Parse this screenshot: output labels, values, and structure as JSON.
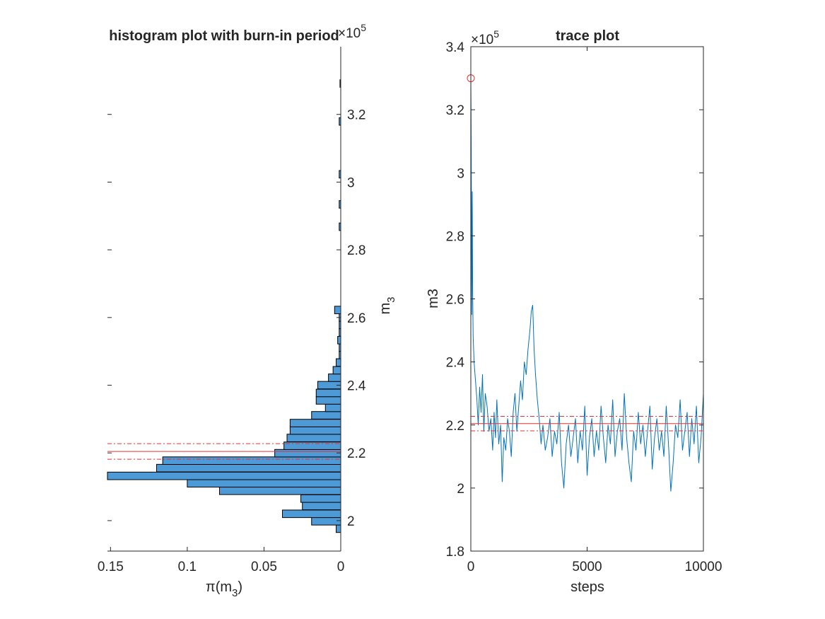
{
  "chart_data": [
    {
      "type": "bar",
      "orientation": "horizontal",
      "title": "histogram plot with burn-in period",
      "xlabel": "π(m",
      "xlabel_sub": "3",
      "xlabel_close": ")",
      "ylabel": "m",
      "ylabel_sub": "3",
      "exponent_label": "×10",
      "exponent_power": "5",
      "xlim": [
        0.152,
        0
      ],
      "xticks": [
        0.15,
        0.1,
        0.05,
        0
      ],
      "xtick_labels": [
        "0.15",
        "0.1",
        "0.05",
        "0"
      ],
      "ylim": [
        1.91,
        3.4
      ],
      "yticks": [
        2.0,
        2.2,
        2.4,
        2.6,
        2.8,
        3.0,
        3.2
      ],
      "ytick_labels": [
        "2",
        "2.2",
        "2.4",
        "2.6",
        "2.8",
        "3",
        "3.2"
      ],
      "y_axis_location": "right",
      "bin_width": 0.0223,
      "bin_starts": [
        1.965,
        1.987,
        2.009,
        2.032,
        2.054,
        2.077,
        2.099,
        2.121,
        2.144,
        2.166,
        2.188,
        2.21,
        2.233,
        2.255,
        2.277,
        2.3,
        2.322,
        2.344,
        2.366,
        2.389,
        2.411,
        2.433,
        2.456,
        2.478,
        2.5,
        2.522,
        2.545,
        2.567,
        2.589,
        2.611,
        2.857,
        2.923,
        3.012,
        3.168,
        3.28
      ],
      "values": [
        0.003,
        0.019,
        0.038,
        0.025,
        0.026,
        0.079,
        0.1,
        0.152,
        0.12,
        0.116,
        0.043,
        0.037,
        0.035,
        0.033,
        0.033,
        0.019,
        0.01,
        0.016,
        0.016,
        0.015,
        0.008,
        0.005,
        0.003,
        0.001,
        0.001,
        0.002,
        0.001,
        0.001,
        0.001,
        0.004,
        0.001,
        0.001,
        0.001,
        0.001,
        0.0005
      ],
      "bar_color": "#4d9ad6",
      "edge_color": "#000000",
      "reference_lines": [
        {
          "value": 2.2045,
          "style": "solid",
          "color": "#e83030"
        },
        {
          "value": 2.2275,
          "style": "dashdot",
          "color": "#e83030"
        },
        {
          "value": 2.1815,
          "style": "dashdot",
          "color": "#e83030"
        }
      ]
    },
    {
      "type": "line",
      "title": "trace plot",
      "xlabel": "steps",
      "ylabel": "m3",
      "exponent_label": "×10",
      "exponent_power": "5",
      "xlim": [
        0,
        10000
      ],
      "xticks": [
        0,
        5000,
        10000
      ],
      "xtick_labels": [
        "0",
        "5000",
        "10000"
      ],
      "ylim": [
        1.8,
        3.4
      ],
      "yticks": [
        1.8,
        2.0,
        2.2,
        2.4,
        2.6,
        2.8,
        3.0,
        3.2,
        3.4
      ],
      "ytick_labels": [
        "1.8",
        "2",
        "2.2",
        "2.4",
        "2.6",
        "2.8",
        "3",
        "3.2",
        "3.4"
      ],
      "series": [
        {
          "color": "#0072bd",
          "x": [
            0,
            10,
            20,
            30,
            40,
            60,
            80,
            100,
            140,
            200,
            260,
            320,
            380,
            440,
            500,
            560,
            620,
            700,
            780,
            860,
            940,
            1000,
            1060,
            1120,
            1200,
            1280,
            1350,
            1420,
            1500,
            1580,
            1660,
            1740,
            1820,
            1900,
            1980,
            2060,
            2140,
            2220,
            2300,
            2380,
            2460,
            2540,
            2600,
            2660,
            2720,
            2780,
            2860,
            2940,
            3020,
            3100,
            3200,
            3300,
            3400,
            3500,
            3600,
            3700,
            3800,
            3900,
            4000,
            4100,
            4200,
            4300,
            4400,
            4500,
            4600,
            4700,
            4800,
            4900,
            5000,
            5100,
            5200,
            5300,
            5400,
            5500,
            5600,
            5700,
            5800,
            5900,
            6000,
            6100,
            6200,
            6300,
            6400,
            6500,
            6600,
            6700,
            6800,
            6900,
            7000,
            7100,
            7200,
            7300,
            7400,
            7500,
            7600,
            7700,
            7800,
            7900,
            8000,
            8100,
            8200,
            8300,
            8400,
            8500,
            8600,
            8700,
            8800,
            8900,
            9000,
            9100,
            9200,
            9300,
            9400,
            9500,
            9600,
            9700,
            9800,
            9900,
            10000
          ],
          "values": [
            3.3,
            3.2,
            3.0,
            2.75,
            2.55,
            2.94,
            2.62,
            2.48,
            2.4,
            2.34,
            2.28,
            2.2,
            2.32,
            2.24,
            2.36,
            2.18,
            2.3,
            2.26,
            2.18,
            2.22,
            2.12,
            2.24,
            2.16,
            2.28,
            2.14,
            2.2,
            2.02,
            2.16,
            2.12,
            2.22,
            2.18,
            2.1,
            2.24,
            2.3,
            2.18,
            2.26,
            2.34,
            2.28,
            2.4,
            2.36,
            2.44,
            2.5,
            2.56,
            2.58,
            2.44,
            2.36,
            2.28,
            2.22,
            2.14,
            2.2,
            2.12,
            2.16,
            2.22,
            2.1,
            2.18,
            2.14,
            2.24,
            2.08,
            2.0,
            2.14,
            2.2,
            2.1,
            2.16,
            2.22,
            2.08,
            2.18,
            2.12,
            2.26,
            2.04,
            2.16,
            2.22,
            2.1,
            2.18,
            2.12,
            2.26,
            2.16,
            2.08,
            2.2,
            2.14,
            2.28,
            2.1,
            2.18,
            2.22,
            2.12,
            2.3,
            2.16,
            2.08,
            2.02,
            2.18,
            2.12,
            2.24,
            2.14,
            2.2,
            2.1,
            2.18,
            2.26,
            2.06,
            2.16,
            2.22,
            2.12,
            2.18,
            2.1,
            2.26,
            2.14,
            1.99,
            2.08,
            2.2,
            2.16,
            2.28,
            2.12,
            2.18,
            2.24,
            2.1,
            2.22,
            2.14,
            2.26,
            2.08,
            2.16,
            2.3
          ]
        }
      ],
      "start_marker": {
        "x": 0,
        "value": 3.3,
        "color": "#e83030",
        "shape": "circle"
      },
      "reference_lines": [
        {
          "value": 2.2045,
          "style": "solid",
          "color": "#e83030"
        },
        {
          "value": 2.2275,
          "style": "dashdot",
          "color": "#e83030"
        },
        {
          "value": 2.1815,
          "style": "dashdot",
          "color": "#e83030"
        }
      ]
    }
  ]
}
